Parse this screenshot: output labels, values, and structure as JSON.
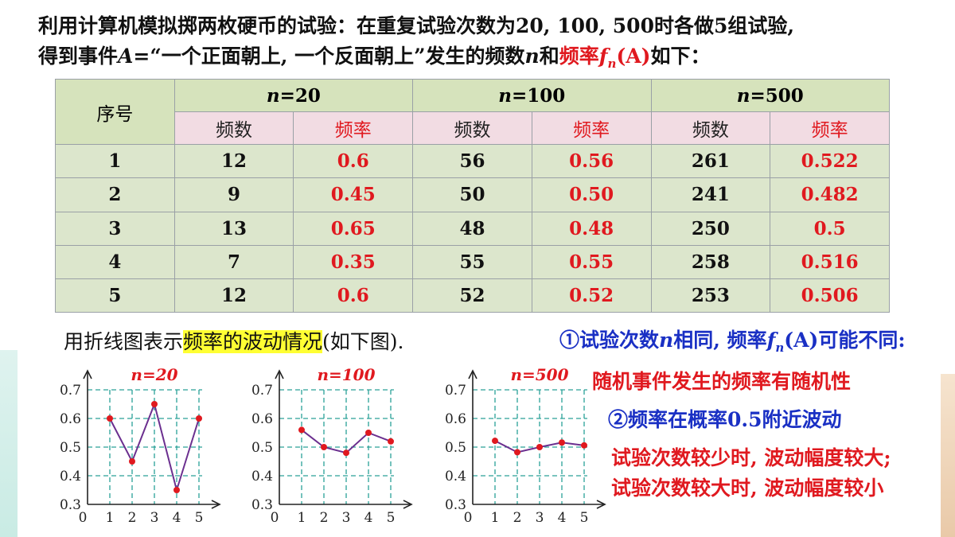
{
  "intro": {
    "line1": "利用计算机模拟掷两枚硬币的试验：在重复试验次数为20, 100, 500时各做5组试验,",
    "line2_a": "得到事件",
    "line2_A": "A",
    "line2_b": "=“一个正面朝上, 一个反面朝上”发生的频数",
    "line2_n": "n",
    "line2_c": "和",
    "line2_red": "频率",
    "line2_f": "f",
    "line2_sub": "n",
    "line2_paren": "(A)",
    "line2_end": "如下："
  },
  "table": {
    "seq_header": "序号",
    "groups": [
      {
        "n_label": "n",
        "value": "=20"
      },
      {
        "n_label": "n",
        "value": "=100"
      },
      {
        "n_label": "n",
        "value": "=500"
      }
    ],
    "count_label": "频数",
    "rate_label": "频率",
    "rows": [
      {
        "seq": "1",
        "c20": "12",
        "r20": "0.6",
        "c100": "56",
        "r100": "0.56",
        "c500": "261",
        "r500": "0.522"
      },
      {
        "seq": "2",
        "c20": "9",
        "r20": "0.45",
        "c100": "50",
        "r100": "0.50",
        "c500": "241",
        "r500": "0.482"
      },
      {
        "seq": "3",
        "c20": "13",
        "r20": "0.65",
        "c100": "48",
        "r100": "0.48",
        "c500": "250",
        "r500": "0.5"
      },
      {
        "seq": "4",
        "c20": "7",
        "r20": "0.35",
        "c100": "55",
        "r100": "0.55",
        "c500": "258",
        "r500": "0.516"
      },
      {
        "seq": "5",
        "c20": "12",
        "r20": "0.6",
        "c100": "52",
        "r100": "0.52",
        "c500": "253",
        "r500": "0.506"
      }
    ]
  },
  "caption": {
    "before": "用折线图表示",
    "highlight": "频率的波动情况",
    "after": "(如下图)."
  },
  "notes": {
    "n1_a": "①试验次数",
    "n1_n": "n",
    "n1_b": "相同, 频率",
    "n1_f": "f",
    "n1_sub": "n",
    "n1_paren": "(A)",
    "n1_c": "可能不同:",
    "n2": "随机事件发生的频率有随机性",
    "n3": "②频率在概率0.5附近波动",
    "n4": "试验次数较少时, 波动幅度较大;",
    "n5": "试验次数较大时, 波动幅度较小"
  },
  "colors": {
    "line": "#6b2f8f",
    "point": "#e0191f",
    "grid": "#2aa198",
    "title": "#e0191f"
  },
  "chart_data": [
    {
      "type": "line",
      "title": "n=20",
      "x": [
        1,
        2,
        3,
        4,
        5
      ],
      "y": [
        0.6,
        0.45,
        0.65,
        0.35,
        0.6
      ],
      "ylim": [
        0.3,
        0.7
      ],
      "yticks": [
        "0.3",
        "0.4",
        "0.5",
        "0.6",
        "0.7"
      ],
      "xticks": [
        "0",
        "1",
        "2",
        "3",
        "4",
        "5"
      ],
      "grid": true
    },
    {
      "type": "line",
      "title": "n=100",
      "x": [
        1,
        2,
        3,
        4,
        5
      ],
      "y": [
        0.56,
        0.5,
        0.48,
        0.55,
        0.52
      ],
      "ylim": [
        0.3,
        0.7
      ],
      "yticks": [
        "0.3",
        "0.4",
        "0.5",
        "0.6",
        "0.7"
      ],
      "xticks": [
        "0",
        "1",
        "2",
        "3",
        "4",
        "5"
      ],
      "grid": true
    },
    {
      "type": "line",
      "title": "n=500",
      "x": [
        1,
        2,
        3,
        4,
        5
      ],
      "y": [
        0.522,
        0.482,
        0.5,
        0.516,
        0.506
      ],
      "ylim": [
        0.3,
        0.7
      ],
      "yticks": [
        "0.3",
        "0.4",
        "0.5",
        "0.6",
        "0.7"
      ],
      "xticks": [
        "0",
        "1",
        "2",
        "3",
        "4",
        "5"
      ],
      "grid": true
    }
  ]
}
